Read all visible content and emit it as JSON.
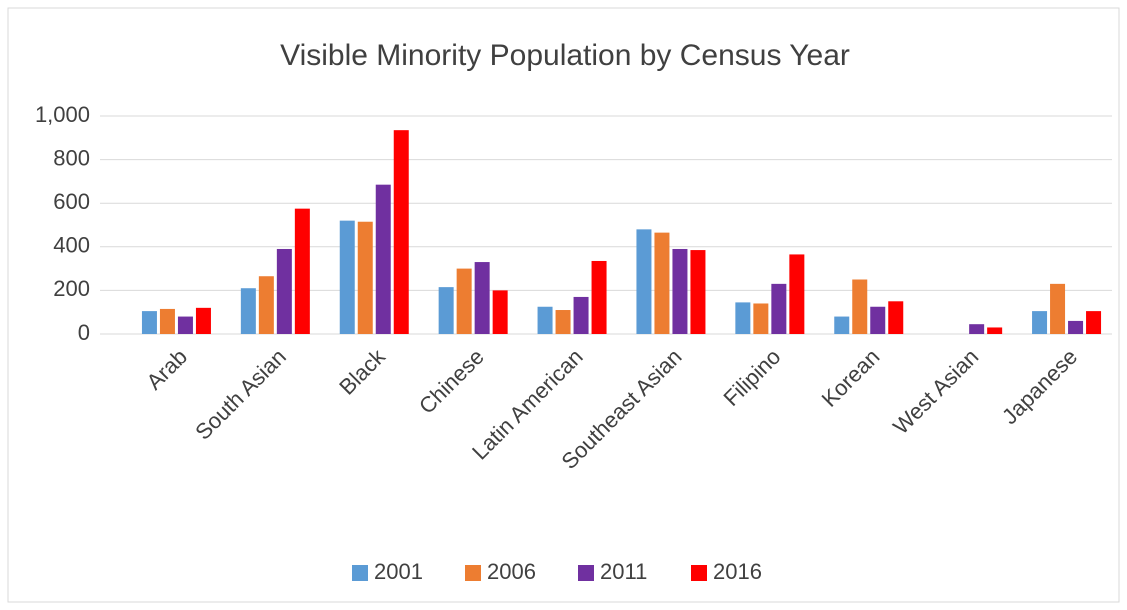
{
  "chart_data": {
    "type": "bar",
    "title": "Visible Minority Population by Census Year",
    "categories": [
      "Arab",
      "South Asian",
      "Black",
      "Chinese",
      "Latin American",
      "Southeast Asian",
      "Filipino",
      "Korean",
      "West Asian",
      "Japanese"
    ],
    "series": [
      {
        "name": "2001",
        "color": "#5b9bd5",
        "values": [
          105,
          210,
          520,
          215,
          125,
          480,
          145,
          80,
          null,
          105
        ]
      },
      {
        "name": "2006",
        "color": "#ed7d31",
        "values": [
          115,
          265,
          515,
          300,
          110,
          465,
          140,
          250,
          null,
          230
        ]
      },
      {
        "name": "2011",
        "color": "#7030a0",
        "values": [
          80,
          390,
          685,
          330,
          170,
          390,
          230,
          125,
          45,
          60
        ]
      },
      {
        "name": "2016",
        "color": "#ff0000",
        "values": [
          120,
          575,
          935,
          200,
          335,
          385,
          365,
          150,
          30,
          105
        ]
      }
    ],
    "ylim": [
      0,
      1000
    ],
    "yticks": [
      0,
      200,
      400,
      600,
      800,
      {
        "value": 1000,
        "label": "1,000"
      }
    ],
    "grid": true,
    "legend": "bottom"
  }
}
